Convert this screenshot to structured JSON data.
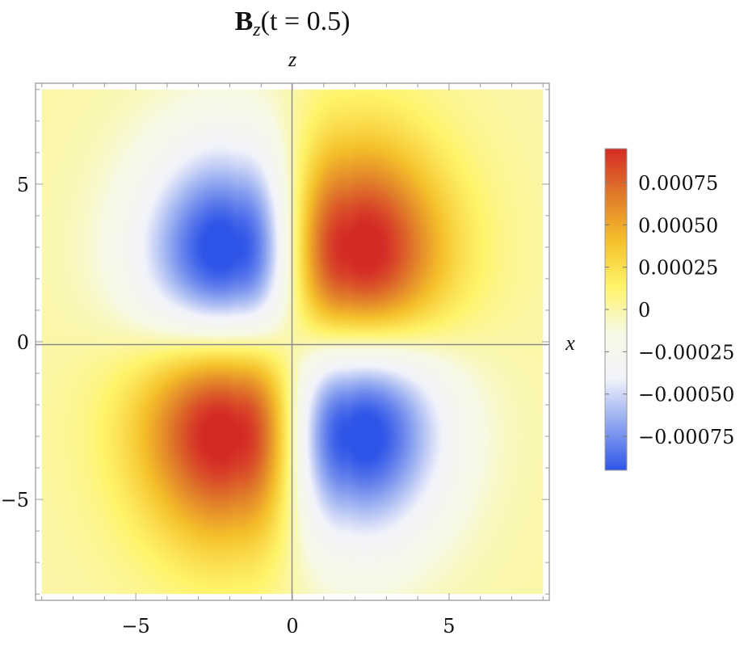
{
  "chart_data": {
    "type": "heatmap",
    "title": {
      "main": "B",
      "sub": "z",
      "args": "(t = 0.5)"
    },
    "xlabel": "x",
    "ylabel": "z",
    "xlim": [
      -8.2,
      8.2
    ],
    "ylim": [
      -8.2,
      8.2
    ],
    "data_extent": [
      -8,
      8
    ],
    "x_ticks": [
      -5,
      0,
      5
    ],
    "x_tick_labels": [
      "−5",
      "0",
      "5"
    ],
    "y_ticks": [
      -5,
      0,
      5
    ],
    "y_tick_labels": [
      "−5",
      "0",
      "5"
    ],
    "field": {
      "form": "A * x * z * exp(-(a*x^2 + b*z^2)), lobes positive for x*z>0",
      "peak": 0.00095,
      "peak_locations": [
        [
          1.8,
          3.0
        ],
        [
          -1.8,
          -3.0
        ]
      ],
      "trough": -0.00095,
      "trough_locations": [
        [
          -1.8,
          3.0
        ],
        [
          1.8,
          -3.0
        ]
      ]
    },
    "colorbar": {
      "min": -0.00095,
      "max": 0.00095,
      "ticks": [
        0.00075,
        0.0005,
        0.00025,
        0,
        -0.00025,
        -0.0005,
        -0.00075
      ],
      "tick_labels": [
        "0.00075",
        "0.00050",
        "0.00025",
        "0",
        "−0.00025",
        "−0.00050",
        "−0.00075"
      ],
      "colors": [
        "#2f55e8",
        "#8fa6f0",
        "#f2f3fb",
        "#f7f9e5",
        "#fff46a",
        "#f5c02a",
        "#e07a2a",
        "#d42a26"
      ]
    },
    "grid": false,
    "axes_lines_through_origin": true,
    "frame_color": "#999999"
  }
}
